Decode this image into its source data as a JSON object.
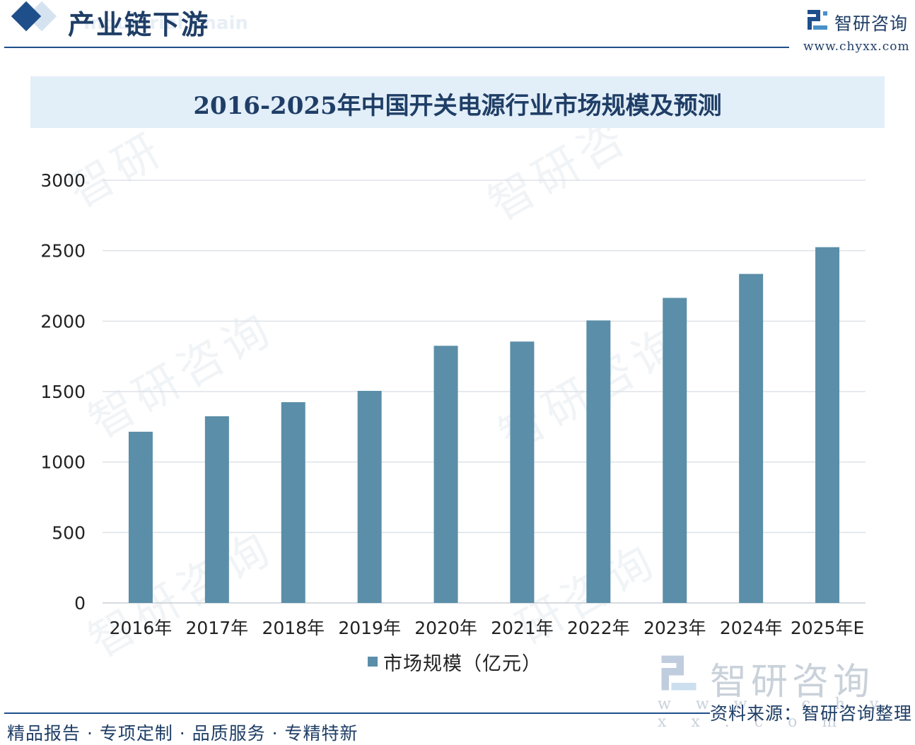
{
  "header": {
    "section_title": "产业链下游",
    "section_subtitle": "Industrial Chain",
    "brand_name": "智研咨询",
    "brand_url": "www.chyxx.com"
  },
  "chart_data": {
    "type": "bar",
    "title": "2016-2025年中国开关电源行业市场规模及预测",
    "categories": [
      "2016年",
      "2017年",
      "2018年",
      "2019年",
      "2020年",
      "2021年",
      "2022年",
      "2023年",
      "2024年",
      "2025年E"
    ],
    "series": [
      {
        "name": "市场规模（亿元）",
        "values": [
          1215,
          1325,
          1425,
          1505,
          1825,
          1855,
          2005,
          2165,
          2335,
          2525
        ]
      }
    ],
    "ylim": [
      0,
      3000
    ],
    "yticks": [
      0,
      500,
      1000,
      1500,
      2000,
      2500,
      3000
    ],
    "ytick_labels": [
      "0",
      "500",
      "1000",
      "1500",
      "2000",
      "2500",
      "3000"
    ],
    "grid": true,
    "legend_position": "bottom",
    "bar_color": "#5b8ea8"
  },
  "watermark": {
    "brand": "智研咨询",
    "url": "w w w . c h y x x . c o m"
  },
  "footer": {
    "source": "资料来源：智研咨询整理",
    "tagline": "精品报告 · 专项定制 · 品质服务 · 专精特新"
  }
}
